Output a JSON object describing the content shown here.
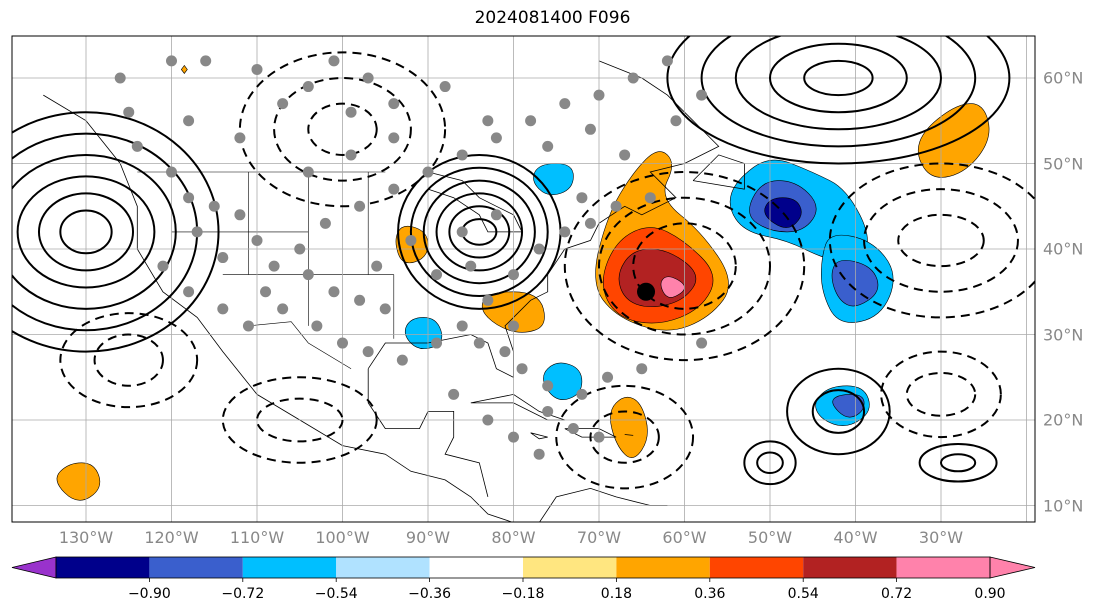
{
  "title": "2024081400 F096",
  "lon_labels": [
    {
      "lon": -130,
      "text": "130°W"
    },
    {
      "lon": -120,
      "text": "120°W"
    },
    {
      "lon": -110,
      "text": "110°W"
    },
    {
      "lon": -100,
      "text": "100°W"
    },
    {
      "lon": -90,
      "text": "90°W"
    },
    {
      "lon": -80,
      "text": "80°W"
    },
    {
      "lon": -70,
      "text": "70°W"
    },
    {
      "lon": -60,
      "text": "60°W"
    },
    {
      "lon": -50,
      "text": "50°W"
    },
    {
      "lon": -40,
      "text": "40°W"
    },
    {
      "lon": -30,
      "text": "30°W"
    }
  ],
  "lat_labels": [
    {
      "lat": 60,
      "text": "60°N"
    },
    {
      "lat": 50,
      "text": "50°N"
    },
    {
      "lat": 40,
      "text": "40°N"
    },
    {
      "lat": 30,
      "text": "30°N"
    },
    {
      "lat": 20,
      "text": "20°N"
    },
    {
      "lat": 10,
      "text": "10°N"
    }
  ],
  "colorbar": {
    "levels": [
      "−0.90",
      "−0.72",
      "−0.54",
      "−0.36",
      "−0.18",
      "0.18",
      "0.36",
      "0.54",
      "0.72",
      "0.90"
    ],
    "colors": [
      "#9932cc",
      "#00008b",
      "#3a5fcd",
      "#00bfff",
      "#b0e2ff",
      "#ffffff",
      "#ffe680",
      "#ffa500",
      "#ff4500",
      "#b22222",
      "#ff82ab"
    ]
  },
  "shading_regions": [
    {
      "color": "#ffa500",
      "poly": [
        [
          -71,
          36
        ],
        [
          -69,
          44
        ],
        [
          -66,
          49
        ],
        [
          -63,
          52
        ],
        [
          -61,
          50
        ],
        [
          -63,
          46
        ],
        [
          -58,
          42
        ],
        [
          -54,
          36
        ],
        [
          -57,
          32
        ],
        [
          -62,
          30
        ],
        [
          -68,
          32
        ]
      ]
    },
    {
      "color": "#ff4500",
      "poly": [
        [
          -70,
          36
        ],
        [
          -68,
          41
        ],
        [
          -64,
          43
        ],
        [
          -60,
          41
        ],
        [
          -56,
          37
        ],
        [
          -58,
          33
        ],
        [
          -63,
          31
        ],
        [
          -68,
          32
        ]
      ]
    },
    {
      "color": "#b22222",
      "poly": [
        [
          -68,
          37
        ],
        [
          -66,
          40
        ],
        [
          -62,
          40
        ],
        [
          -58,
          37
        ],
        [
          -60,
          34
        ],
        [
          -64,
          33
        ],
        [
          -67,
          34
        ]
      ]
    },
    {
      "color": "#ff82ab",
      "poly": [
        [
          -63,
          36
        ],
        [
          -62,
          37
        ],
        [
          -60,
          36
        ],
        [
          -60,
          35
        ],
        [
          -62,
          34
        ]
      ]
    },
    {
      "color": "#00bfff",
      "poly": [
        [
          -55,
          45
        ],
        [
          -54,
          48
        ],
        [
          -50,
          51
        ],
        [
          -45,
          49
        ],
        [
          -41,
          47
        ],
        [
          -38,
          41
        ],
        [
          -40,
          38
        ],
        [
          -44,
          39
        ],
        [
          -48,
          41
        ],
        [
          -53,
          42
        ]
      ]
    },
    {
      "color": "#3a5fcd",
      "poly": [
        [
          -53,
          44
        ],
        [
          -51,
          48
        ],
        [
          -47,
          48
        ],
        [
          -44,
          45
        ],
        [
          -46,
          42
        ],
        [
          -50,
          42
        ]
      ]
    },
    {
      "color": "#00008b",
      "poly": [
        [
          -51,
          44
        ],
        [
          -50,
          46
        ],
        [
          -47,
          46
        ],
        [
          -46,
          44
        ],
        [
          -48,
          42
        ]
      ]
    },
    {
      "color": "#00bfff",
      "poly": [
        [
          -44,
          39
        ],
        [
          -43,
          42
        ],
        [
          -38,
          41
        ],
        [
          -35,
          37
        ],
        [
          -37,
          32
        ],
        [
          -42,
          31
        ],
        [
          -44,
          35
        ]
      ]
    },
    {
      "color": "#3a5fcd",
      "poly": [
        [
          -43,
          37
        ],
        [
          -42,
          39
        ],
        [
          -38,
          38
        ],
        [
          -37,
          35
        ],
        [
          -40,
          33
        ],
        [
          -42,
          34
        ]
      ]
    },
    {
      "color": "#ffa500",
      "poly": [
        [
          -32,
          54
        ],
        [
          -28,
          57
        ],
        [
          -25,
          57
        ],
        [
          -24,
          53
        ],
        [
          -27,
          49
        ],
        [
          -31,
          48
        ],
        [
          -33,
          51
        ]
      ]
    },
    {
      "color": "#ffa500",
      "poly": [
        [
          -69,
          21
        ],
        [
          -67,
          23
        ],
        [
          -65,
          22
        ],
        [
          -64,
          18
        ],
        [
          -66,
          15
        ],
        [
          -68,
          17
        ]
      ]
    },
    {
      "color": "#00bfff",
      "poly": [
        [
          -77,
          25
        ],
        [
          -75,
          27
        ],
        [
          -72,
          26
        ],
        [
          -72,
          23
        ],
        [
          -75,
          22
        ]
      ]
    },
    {
      "color": "#00bfff",
      "poly": [
        [
          -45,
          22
        ],
        [
          -43,
          24
        ],
        [
          -39,
          24
        ],
        [
          -38,
          21
        ],
        [
          -41,
          19
        ],
        [
          -44,
          20
        ]
      ]
    },
    {
      "color": "#3a5fcd",
      "poly": [
        [
          -43,
          22
        ],
        [
          -42,
          23
        ],
        [
          -39,
          23
        ],
        [
          -39,
          21
        ],
        [
          -41,
          20
        ]
      ]
    },
    {
      "color": "#ffa500",
      "poly": [
        [
          -94,
          41
        ],
        [
          -93,
          43
        ],
        [
          -90,
          42
        ],
        [
          -90,
          39
        ],
        [
          -93,
          38
        ]
      ]
    },
    {
      "color": "#ffa500",
      "poly": [
        [
          -84,
          33
        ],
        [
          -83,
          35
        ],
        [
          -77,
          35
        ],
        [
          -76,
          31
        ],
        [
          -79,
          30
        ],
        [
          -82,
          31
        ]
      ]
    },
    {
      "color": "#00bfff",
      "poly": [
        [
          -78,
          48
        ],
        [
          -77,
          50
        ],
        [
          -73,
          50
        ],
        [
          -73,
          47
        ],
        [
          -76,
          46
        ]
      ]
    },
    {
      "color": "#ffa500",
      "poly": [
        [
          -134,
          13
        ],
        [
          -132,
          15
        ],
        [
          -129,
          15
        ],
        [
          -128,
          12
        ],
        [
          -131,
          10
        ]
      ]
    },
    {
      "color": "#00bfff",
      "poly": [
        [
          -93,
          30
        ],
        [
          -92,
          32
        ],
        [
          -89,
          32
        ],
        [
          -88,
          29
        ],
        [
          -91,
          28
        ]
      ]
    }
  ],
  "dots": [
    [
      -126,
      60
    ],
    [
      -125,
      56
    ],
    [
      -124,
      52
    ],
    [
      -120,
      49
    ],
    [
      -118,
      46
    ],
    [
      -115,
      45
    ],
    [
      -112,
      44
    ],
    [
      -117,
      42
    ],
    [
      -114,
      39
    ],
    [
      -110,
      41
    ],
    [
      -108,
      38
    ],
    [
      -104,
      37
    ],
    [
      -101,
      35
    ],
    [
      -98,
      34
    ],
    [
      -95,
      33
    ],
    [
      -111,
      31
    ],
    [
      -107,
      33
    ],
    [
      -103,
      31
    ],
    [
      -100,
      29
    ],
    [
      -97,
      28
    ],
    [
      -93,
      27
    ],
    [
      -89,
      29
    ],
    [
      -86,
      31
    ],
    [
      -84,
      29
    ],
    [
      -81,
      28
    ],
    [
      -79,
      26
    ],
    [
      -76,
      24
    ],
    [
      -76,
      21
    ],
    [
      -73,
      19
    ],
    [
      -70,
      18
    ],
    [
      -87,
      23
    ],
    [
      -83,
      20
    ],
    [
      -80,
      18
    ],
    [
      -77,
      16
    ],
    [
      -72,
      23
    ],
    [
      -69,
      25
    ],
    [
      -65,
      26
    ],
    [
      -58,
      29
    ],
    [
      -121,
      38
    ],
    [
      -118,
      35
    ],
    [
      -114,
      33
    ],
    [
      -109,
      35
    ],
    [
      -105,
      40
    ],
    [
      -102,
      43
    ],
    [
      -98,
      45
    ],
    [
      -94,
      47
    ],
    [
      -90,
      49
    ],
    [
      -86,
      51
    ],
    [
      -82,
      53
    ],
    [
      -78,
      55
    ],
    [
      -74,
      57
    ],
    [
      -70,
      58
    ],
    [
      -66,
      60
    ],
    [
      -62,
      62
    ],
    [
      -94,
      53
    ],
    [
      -99,
      56
    ],
    [
      -104,
      59
    ],
    [
      -110,
      61
    ],
    [
      -116,
      62
    ],
    [
      -120,
      62
    ],
    [
      -104,
      49
    ],
    [
      -99,
      51
    ],
    [
      -94,
      57
    ],
    [
      -88,
      59
    ],
    [
      -83,
      55
    ],
    [
      -76,
      52
    ],
    [
      -71,
      54
    ],
    [
      -67,
      51
    ],
    [
      -61,
      55
    ],
    [
      -58,
      58
    ],
    [
      -72,
      46
    ],
    [
      -68,
      45
    ],
    [
      -64,
      46
    ],
    [
      -86,
      42
    ],
    [
      -82,
      44
    ],
    [
      -85,
      38
    ],
    [
      -80,
      37
    ],
    [
      -77,
      40
    ],
    [
      -74,
      42
    ],
    [
      -71,
      43
    ],
    [
      -118,
      55
    ],
    [
      -112,
      53
    ],
    [
      -107,
      57
    ],
    [
      -101,
      62
    ],
    [
      -97,
      60
    ],
    [
      -92,
      41
    ],
    [
      -89,
      37
    ],
    [
      -96,
      38
    ],
    [
      -83,
      34
    ],
    [
      -80,
      31
    ]
  ],
  "big_dot": [
    -64.5,
    35
  ],
  "small_diamond": [
    -118.5,
    61
  ]
}
